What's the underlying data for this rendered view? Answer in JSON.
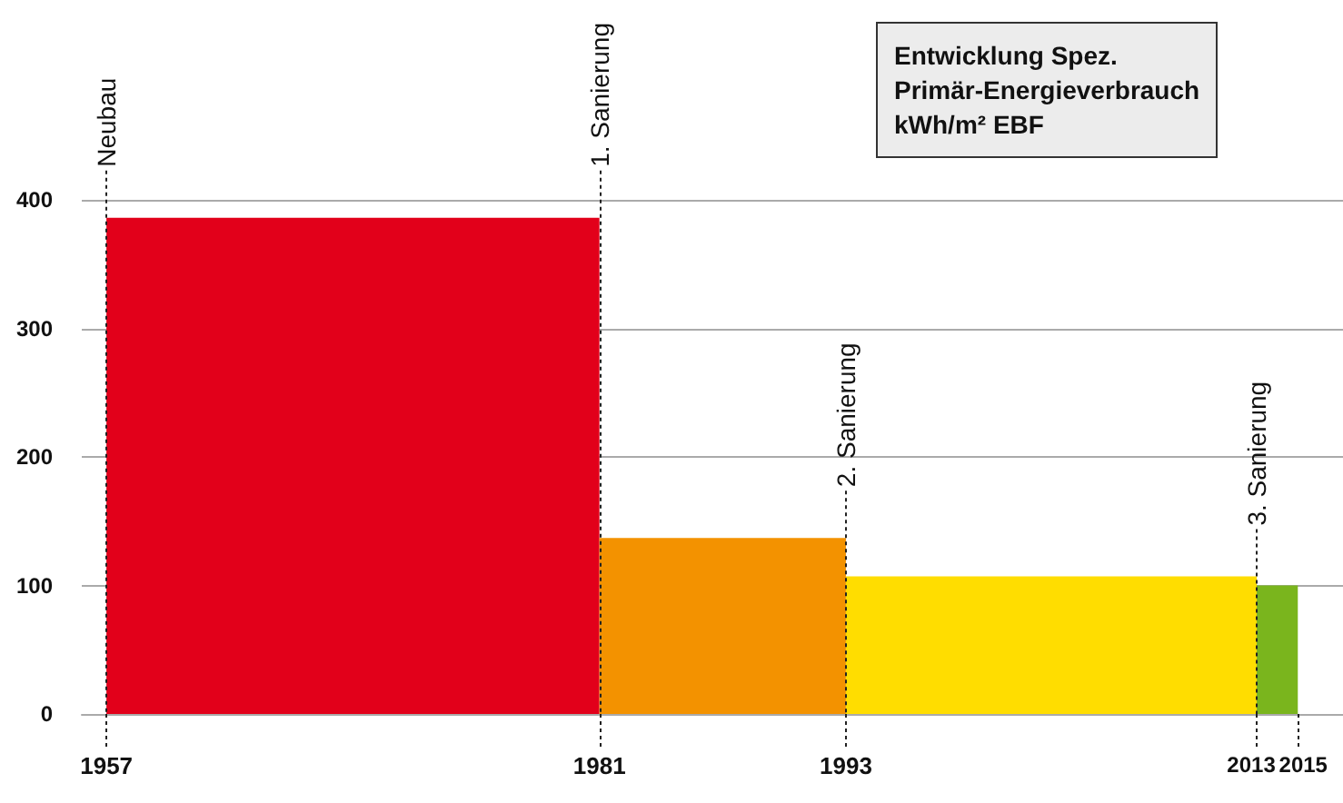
{
  "chart_data": {
    "type": "histogram",
    "title": "Entwicklung Spez.\nPrimär-Energieverbrauch\nkWh/m² EBF",
    "bins": [
      1957,
      1981,
      1993,
      2013,
      2015
    ],
    "values": [
      386,
      137,
      107,
      100
    ],
    "colors": [
      "#e2001a",
      "#f39200",
      "#ffdd00",
      "#7ab51d"
    ],
    "xlim": [
      1955.8,
      2017.2
    ],
    "xticks": [
      1957,
      1981,
      1993,
      2013,
      2015
    ],
    "ylim": [
      0,
      400
    ],
    "yticks": [
      0,
      100,
      200,
      300,
      400
    ],
    "grid": "y",
    "ref_lines": [
      {
        "axis": "x",
        "value": 1957,
        "label": "Neubau",
        "line_style": "dotted"
      },
      {
        "axis": "x",
        "value": 1981,
        "label": "1. Sanierung",
        "line_style": "dotted"
      },
      {
        "axis": "x",
        "value": 1993,
        "label": "2. Sanierung",
        "line_style": "dotted"
      },
      {
        "axis": "x",
        "value": 2013,
        "label": "3. Sanierung",
        "line_style": "dotted"
      }
    ]
  }
}
